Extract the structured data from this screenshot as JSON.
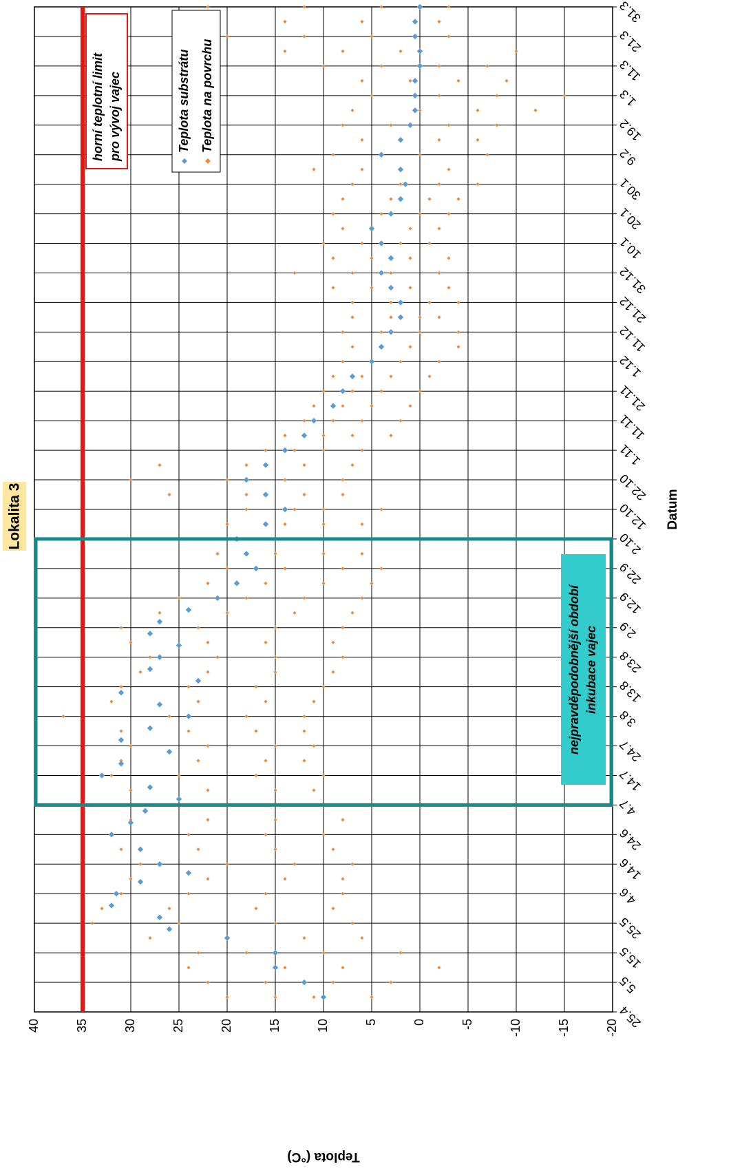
{
  "chart_data": {
    "type": "scatter",
    "title": "Lokalita 3",
    "x_label": "Datum",
    "y_label": "Teplota (°C)",
    "xlim": [
      0,
      340
    ],
    "xticks": [
      {
        "value": 0,
        "label": "25.4"
      },
      {
        "value": 10,
        "label": "5.5"
      },
      {
        "value": 20,
        "label": "15.5"
      },
      {
        "value": 30,
        "label": "25.5"
      },
      {
        "value": 40,
        "label": "4.6"
      },
      {
        "value": 50,
        "label": "14.6"
      },
      {
        "value": 60,
        "label": "24.6"
      },
      {
        "value": 70,
        "label": "4.7"
      },
      {
        "value": 80,
        "label": "14.7"
      },
      {
        "value": 90,
        "label": "24.7"
      },
      {
        "value": 100,
        "label": "3.8"
      },
      {
        "value": 110,
        "label": "13.8"
      },
      {
        "value": 120,
        "label": "23.8"
      },
      {
        "value": 130,
        "label": "2.9"
      },
      {
        "value": 140,
        "label": "12.9"
      },
      {
        "value": 150,
        "label": "22.9"
      },
      {
        "value": 160,
        "label": "2.10"
      },
      {
        "value": 170,
        "label": "12.10"
      },
      {
        "value": 180,
        "label": "22.10"
      },
      {
        "value": 190,
        "label": "1.11"
      },
      {
        "value": 200,
        "label": "11.11"
      },
      {
        "value": 210,
        "label": "21.11"
      },
      {
        "value": 220,
        "label": "1.12"
      },
      {
        "value": 230,
        "label": "11.12"
      },
      {
        "value": 240,
        "label": "21.12"
      },
      {
        "value": 250,
        "label": "31.12"
      },
      {
        "value": 260,
        "label": "10.1"
      },
      {
        "value": 270,
        "label": "20.1"
      },
      {
        "value": 280,
        "label": "30.1"
      },
      {
        "value": 290,
        "label": "9.2"
      },
      {
        "value": 300,
        "label": "19.2"
      },
      {
        "value": 310,
        "label": "1.3"
      },
      {
        "value": 320,
        "label": "11.3"
      },
      {
        "value": 330,
        "label": "21.3"
      },
      {
        "value": 340,
        "label": "31.3"
      }
    ],
    "ylim": [
      -20,
      40
    ],
    "yticks": [
      -20,
      -15,
      -10,
      -5,
      0,
      5,
      10,
      15,
      20,
      25,
      30,
      35,
      40
    ],
    "grid": true,
    "legend": "top-right",
    "threshold": {
      "value": 35,
      "color": "#e8140f",
      "label": [
        "horní teplotní limit",
        "pro vývoj vajec"
      ]
    },
    "highlight": {
      "x_start": 70,
      "x_end": 160,
      "color": "#18898a",
      "label": [
        "nejpravděpodobnější období",
        "inkubace vajec"
      ]
    },
    "series": [
      {
        "name": "Teplota na povrchu",
        "color": "#f0883a",
        "x": [
          5,
          5,
          5,
          5,
          10,
          10,
          10,
          10,
          15,
          15,
          15,
          15,
          20,
          20,
          20,
          20,
          25,
          25,
          25,
          25,
          30,
          30,
          30,
          30,
          35,
          35,
          35,
          35,
          40,
          40,
          40,
          40,
          45,
          45,
          45,
          45,
          50,
          50,
          50,
          50,
          55,
          55,
          55,
          55,
          60,
          60,
          60,
          60,
          65,
          65,
          65,
          65,
          70,
          70,
          70,
          70,
          75,
          75,
          75,
          75,
          80,
          80,
          80,
          80,
          85,
          85,
          85,
          85,
          90,
          90,
          90,
          90,
          95,
          95,
          95,
          95,
          100,
          100,
          100,
          100,
          105,
          105,
          105,
          105,
          110,
          110,
          110,
          110,
          115,
          115,
          115,
          115,
          120,
          120,
          120,
          120,
          125,
          125,
          125,
          125,
          130,
          130,
          130,
          130,
          135,
          135,
          135,
          135,
          140,
          140,
          140,
          140,
          145,
          145,
          145,
          145,
          150,
          150,
          150,
          150,
          155,
          155,
          155,
          155,
          160,
          160,
          160,
          160,
          165,
          165,
          165,
          165,
          170,
          170,
          170,
          170,
          175,
          175,
          175,
          175,
          180,
          180,
          180,
          180,
          185,
          185,
          185,
          185,
          190,
          190,
          190,
          190,
          195,
          195,
          195,
          195,
          200,
          200,
          200,
          200,
          205,
          205,
          205,
          205,
          210,
          210,
          210,
          210,
          215,
          215,
          215,
          215,
          220,
          220,
          220,
          220,
          225,
          225,
          225,
          225,
          230,
          230,
          230,
          230,
          235,
          235,
          235,
          235,
          240,
          240,
          240,
          240,
          245,
          245,
          245,
          245,
          250,
          250,
          250,
          250,
          255,
          255,
          255,
          255,
          260,
          260,
          260,
          260,
          265,
          265,
          265,
          265,
          270,
          270,
          270,
          270,
          275,
          275,
          275,
          275,
          280,
          280,
          280,
          280,
          285,
          285,
          285,
          285,
          290,
          290,
          290,
          290,
          295,
          295,
          295,
          295,
          300,
          300,
          300,
          300,
          305,
          305,
          305,
          305,
          310,
          310,
          310,
          310,
          315,
          315,
          315,
          315,
          320,
          320,
          320,
          320,
          325,
          325,
          325,
          325,
          330,
          330,
          330,
          330,
          335,
          335,
          335,
          335,
          340,
          340,
          340,
          340
        ],
        "values": [
          20,
          15,
          11,
          5,
          22,
          16,
          9,
          3,
          24,
          14,
          8,
          -2,
          23,
          18,
          10,
          2,
          28,
          20,
          12,
          6,
          34,
          25,
          15,
          7,
          33,
          26,
          17,
          9,
          31,
          24,
          16,
          8,
          30,
          22,
          14,
          8,
          29,
          20,
          13,
          7,
          31,
          23,
          15,
          9,
          32,
          24,
          16,
          10,
          30,
          22,
          15,
          8,
          28,
          20,
          14,
          10,
          30,
          22,
          15,
          11,
          32,
          25,
          17,
          10,
          31,
          23,
          16,
          12,
          30,
          22,
          15,
          11,
          31,
          24,
          17,
          12,
          37,
          26,
          18,
          12,
          32,
          23,
          16,
          11,
          31,
          24,
          17,
          10,
          29,
          22,
          15,
          9,
          28,
          21,
          15,
          8,
          30,
          22,
          16,
          9,
          31,
          23,
          15,
          8,
          27,
          20,
          13,
          7,
          25,
          18,
          12,
          6,
          22,
          16,
          10,
          5,
          20,
          14,
          8,
          4,
          21,
          15,
          10,
          6,
          25,
          17,
          11,
          8,
          20,
          14,
          10,
          6,
          18,
          13,
          10,
          4,
          26,
          18,
          12,
          8,
          30,
          20,
          14,
          8,
          27,
          18,
          12,
          7,
          16,
          13,
          10,
          6,
          14,
          10,
          7,
          3,
          12,
          9,
          6,
          2,
          11,
          8,
          5,
          1,
          10,
          7,
          4,
          0,
          9,
          6,
          3,
          -1,
          8,
          5,
          2,
          -2,
          7,
          4,
          1,
          -4,
          8,
          4,
          0,
          -4,
          7,
          3,
          0,
          -2,
          7,
          3,
          -1,
          -4,
          9,
          5,
          1,
          -3,
          13,
          7,
          3,
          -2,
          9,
          5,
          1,
          -3,
          10,
          6,
          2,
          -1,
          8,
          5,
          1,
          -2,
          9,
          4,
          0,
          -3,
          8,
          3,
          -1,
          -4,
          7,
          2,
          -2,
          -6,
          11,
          6,
          2,
          -3,
          9,
          4,
          0,
          -7,
          6,
          2,
          -2,
          -6,
          8,
          3,
          -3,
          -8,
          7,
          0,
          -6,
          -12,
          5,
          -2,
          -8,
          -15,
          6,
          1,
          -4,
          -9,
          10,
          4,
          -2,
          -7,
          14,
          8,
          2,
          -10,
          20,
          12,
          5,
          -3,
          24,
          14,
          6,
          -2,
          22,
          12,
          4,
          -3
        ]
      },
      {
        "name": "Teplota substrátu",
        "color": "#5b9bd5",
        "x": [
          5,
          10,
          15,
          20,
          25,
          28,
          32,
          36,
          40,
          44,
          47,
          50,
          55,
          60,
          64,
          68,
          72,
          76,
          80,
          84,
          88,
          92,
          96,
          100,
          104,
          108,
          112,
          116,
          120,
          124,
          128,
          132,
          136,
          140,
          145,
          150,
          155,
          160,
          165,
          170,
          175,
          180,
          185,
          190,
          195,
          200,
          205,
          210,
          215,
          220,
          225,
          230,
          235,
          240,
          245,
          250,
          255,
          260,
          265,
          270,
          275,
          280,
          285,
          290,
          295,
          300,
          305,
          310,
          315,
          320,
          325,
          330,
          335,
          340
        ],
        "values": [
          10,
          12,
          15,
          15,
          20,
          26,
          27,
          32,
          31.5,
          29,
          24,
          27,
          29,
          32,
          30,
          28.5,
          25,
          28,
          33,
          31,
          26,
          31,
          28,
          24,
          27,
          31,
          23,
          28,
          27,
          25,
          28,
          27,
          24,
          21,
          19,
          17,
          18,
          19,
          16,
          14,
          16,
          18,
          16,
          14,
          12,
          11,
          9,
          8,
          7,
          5,
          4,
          3,
          2,
          2,
          3,
          4,
          3,
          4,
          5,
          3,
          2,
          1.5,
          2,
          4,
          2,
          1,
          0.5,
          0.5,
          0.5,
          0,
          0,
          0.5,
          0.5,
          0
        ]
      }
    ]
  }
}
